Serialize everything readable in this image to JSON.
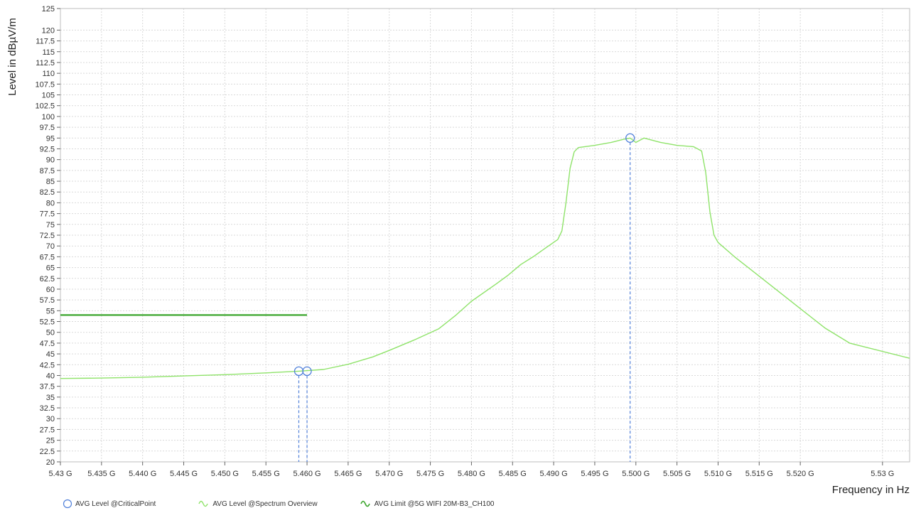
{
  "chart_data": {
    "type": "line",
    "ylabel": "Level in dBµV/m",
    "xlabel": "Frequency in Hz",
    "ylim": [
      20,
      125
    ],
    "xlim": [
      5.43,
      5.5333
    ],
    "y_ticks": [
      20,
      22.5,
      25,
      27.5,
      30,
      32.5,
      35,
      37.5,
      40,
      42.5,
      45,
      47.5,
      50,
      52.5,
      55,
      57.5,
      60,
      62.5,
      65,
      67.5,
      70,
      72.5,
      75,
      77.5,
      80,
      82.5,
      85,
      87.5,
      90,
      92.5,
      95,
      97.5,
      100,
      102.5,
      105,
      107.5,
      110,
      112.5,
      115,
      117.5,
      120,
      125
    ],
    "x_ticks": [
      {
        "value": 5.43,
        "label": "5.43 G"
      },
      {
        "value": 5.435,
        "label": "5.435 G"
      },
      {
        "value": 5.44,
        "label": "5.440 G"
      },
      {
        "value": 5.445,
        "label": "5.445 G"
      },
      {
        "value": 5.45,
        "label": "5.450 G"
      },
      {
        "value": 5.455,
        "label": "5.455 G"
      },
      {
        "value": 5.46,
        "label": "5.460 G"
      },
      {
        "value": 5.465,
        "label": "5.465 G"
      },
      {
        "value": 5.47,
        "label": "5.470 G"
      },
      {
        "value": 5.475,
        "label": "5.475 G"
      },
      {
        "value": 5.48,
        "label": "5.480 G"
      },
      {
        "value": 5.485,
        "label": "5.485 G"
      },
      {
        "value": 5.49,
        "label": "5.490 G"
      },
      {
        "value": 5.495,
        "label": "5.495 G"
      },
      {
        "value": 5.5,
        "label": "5.500 G"
      },
      {
        "value": 5.505,
        "label": "5.505 G"
      },
      {
        "value": 5.51,
        "label": "5.510 G"
      },
      {
        "value": 5.515,
        "label": "5.515 G"
      },
      {
        "value": 5.52,
        "label": "5.520 G"
      },
      {
        "value": 5.53,
        "label": "5.53 G"
      }
    ],
    "grid": true,
    "series": [
      {
        "name": "AVG Level @Spectrum Overview",
        "color": "#8fe36a",
        "x": [
          5.43,
          5.435,
          5.44,
          5.445,
          5.45,
          5.455,
          5.459,
          5.462,
          5.465,
          5.468,
          5.47,
          5.473,
          5.476,
          5.478,
          5.48,
          5.483,
          5.4845,
          5.486,
          5.4875,
          5.489,
          5.4905,
          5.491,
          5.4915,
          5.492,
          5.4925,
          5.493,
          5.495,
          5.497,
          5.4985,
          5.4993,
          5.5,
          5.501,
          5.503,
          5.505,
          5.507,
          5.508,
          5.5085,
          5.509,
          5.5095,
          5.51,
          5.512,
          5.515,
          5.518,
          5.52,
          5.523,
          5.526,
          5.5333
        ],
        "y": [
          39.3,
          39.4,
          39.6,
          39.9,
          40.2,
          40.6,
          41.0,
          41.4,
          42.6,
          44.3,
          45.8,
          48.2,
          50.8,
          53.8,
          57.2,
          61.2,
          63.3,
          65.7,
          67.5,
          69.5,
          71.5,
          73.5,
          80,
          88,
          91.8,
          92.8,
          93.3,
          94.0,
          94.7,
          95.0,
          94.0,
          95.0,
          94.0,
          93.3,
          93.0,
          92.0,
          87,
          78,
          72.5,
          70.8,
          67.5,
          63.0,
          58.5,
          55.5,
          51.0,
          47.5,
          44.0
        ]
      },
      {
        "name": "AVG Limit @5G WIFI  20M-B3_CH100",
        "color": "#3aa52b",
        "x": [
          5.43,
          5.46
        ],
        "y": [
          54,
          54
        ]
      }
    ],
    "critical_points": {
      "name": "AVG Level @CriticalPoint",
      "color": "#4f7fd9",
      "x": [
        5.459,
        5.46,
        5.4993
      ],
      "y": [
        41.0,
        41.0,
        95.0
      ]
    }
  },
  "legend": [
    {
      "label": "AVG Level @CriticalPoint",
      "icon": "circle-marker-icon"
    },
    {
      "label": "AVG Level @Spectrum Overview",
      "icon": "light-green-wave-icon"
    },
    {
      "label": "AVG Limit @5G WIFI  20M-B3_CH100",
      "icon": "dark-green-wave-icon"
    }
  ]
}
